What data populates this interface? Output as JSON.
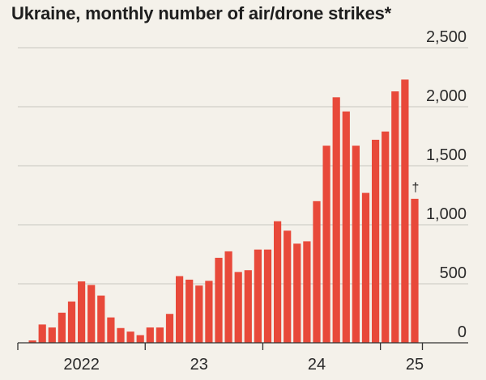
{
  "chart_data": {
    "type": "bar",
    "title": "Ukraine, monthly number of air/drone strikes*",
    "xlabel": "",
    "ylabel": "",
    "ylim": [
      0,
      2500
    ],
    "grid": true,
    "y_ticks": [
      {
        "value": 0,
        "label": "0"
      },
      {
        "value": 500,
        "label": "500"
      },
      {
        "value": 1000,
        "label": "1,000"
      },
      {
        "value": 1500,
        "label": "1,500"
      },
      {
        "value": 2000,
        "label": "2,000"
      },
      {
        "value": 2500,
        "label": "2,500"
      }
    ],
    "x_ticks": [
      {
        "label": "2022",
        "month_index": 5
      },
      {
        "label": "23",
        "month_index": 17
      },
      {
        "label": "24",
        "month_index": 29
      },
      {
        "label": "25",
        "month_index": 39
      }
    ],
    "year_boundaries": [
      11,
      23,
      35
    ],
    "annotation": {
      "text": "†",
      "month_index": 41
    },
    "bar_color": "#e8493a",
    "series": [
      {
        "values": [
          20,
          155,
          130,
          255,
          350,
          520,
          490,
          400,
          215,
          125,
          95,
          65,
          130,
          130,
          245,
          565,
          535,
          485,
          525,
          720,
          775,
          600,
          615,
          790,
          790,
          1030,
          950,
          840,
          860,
          1200,
          1670,
          2080,
          1960,
          1670,
          1270,
          1720,
          1790,
          2130,
          2230,
          1220
        ]
      }
    ]
  }
}
